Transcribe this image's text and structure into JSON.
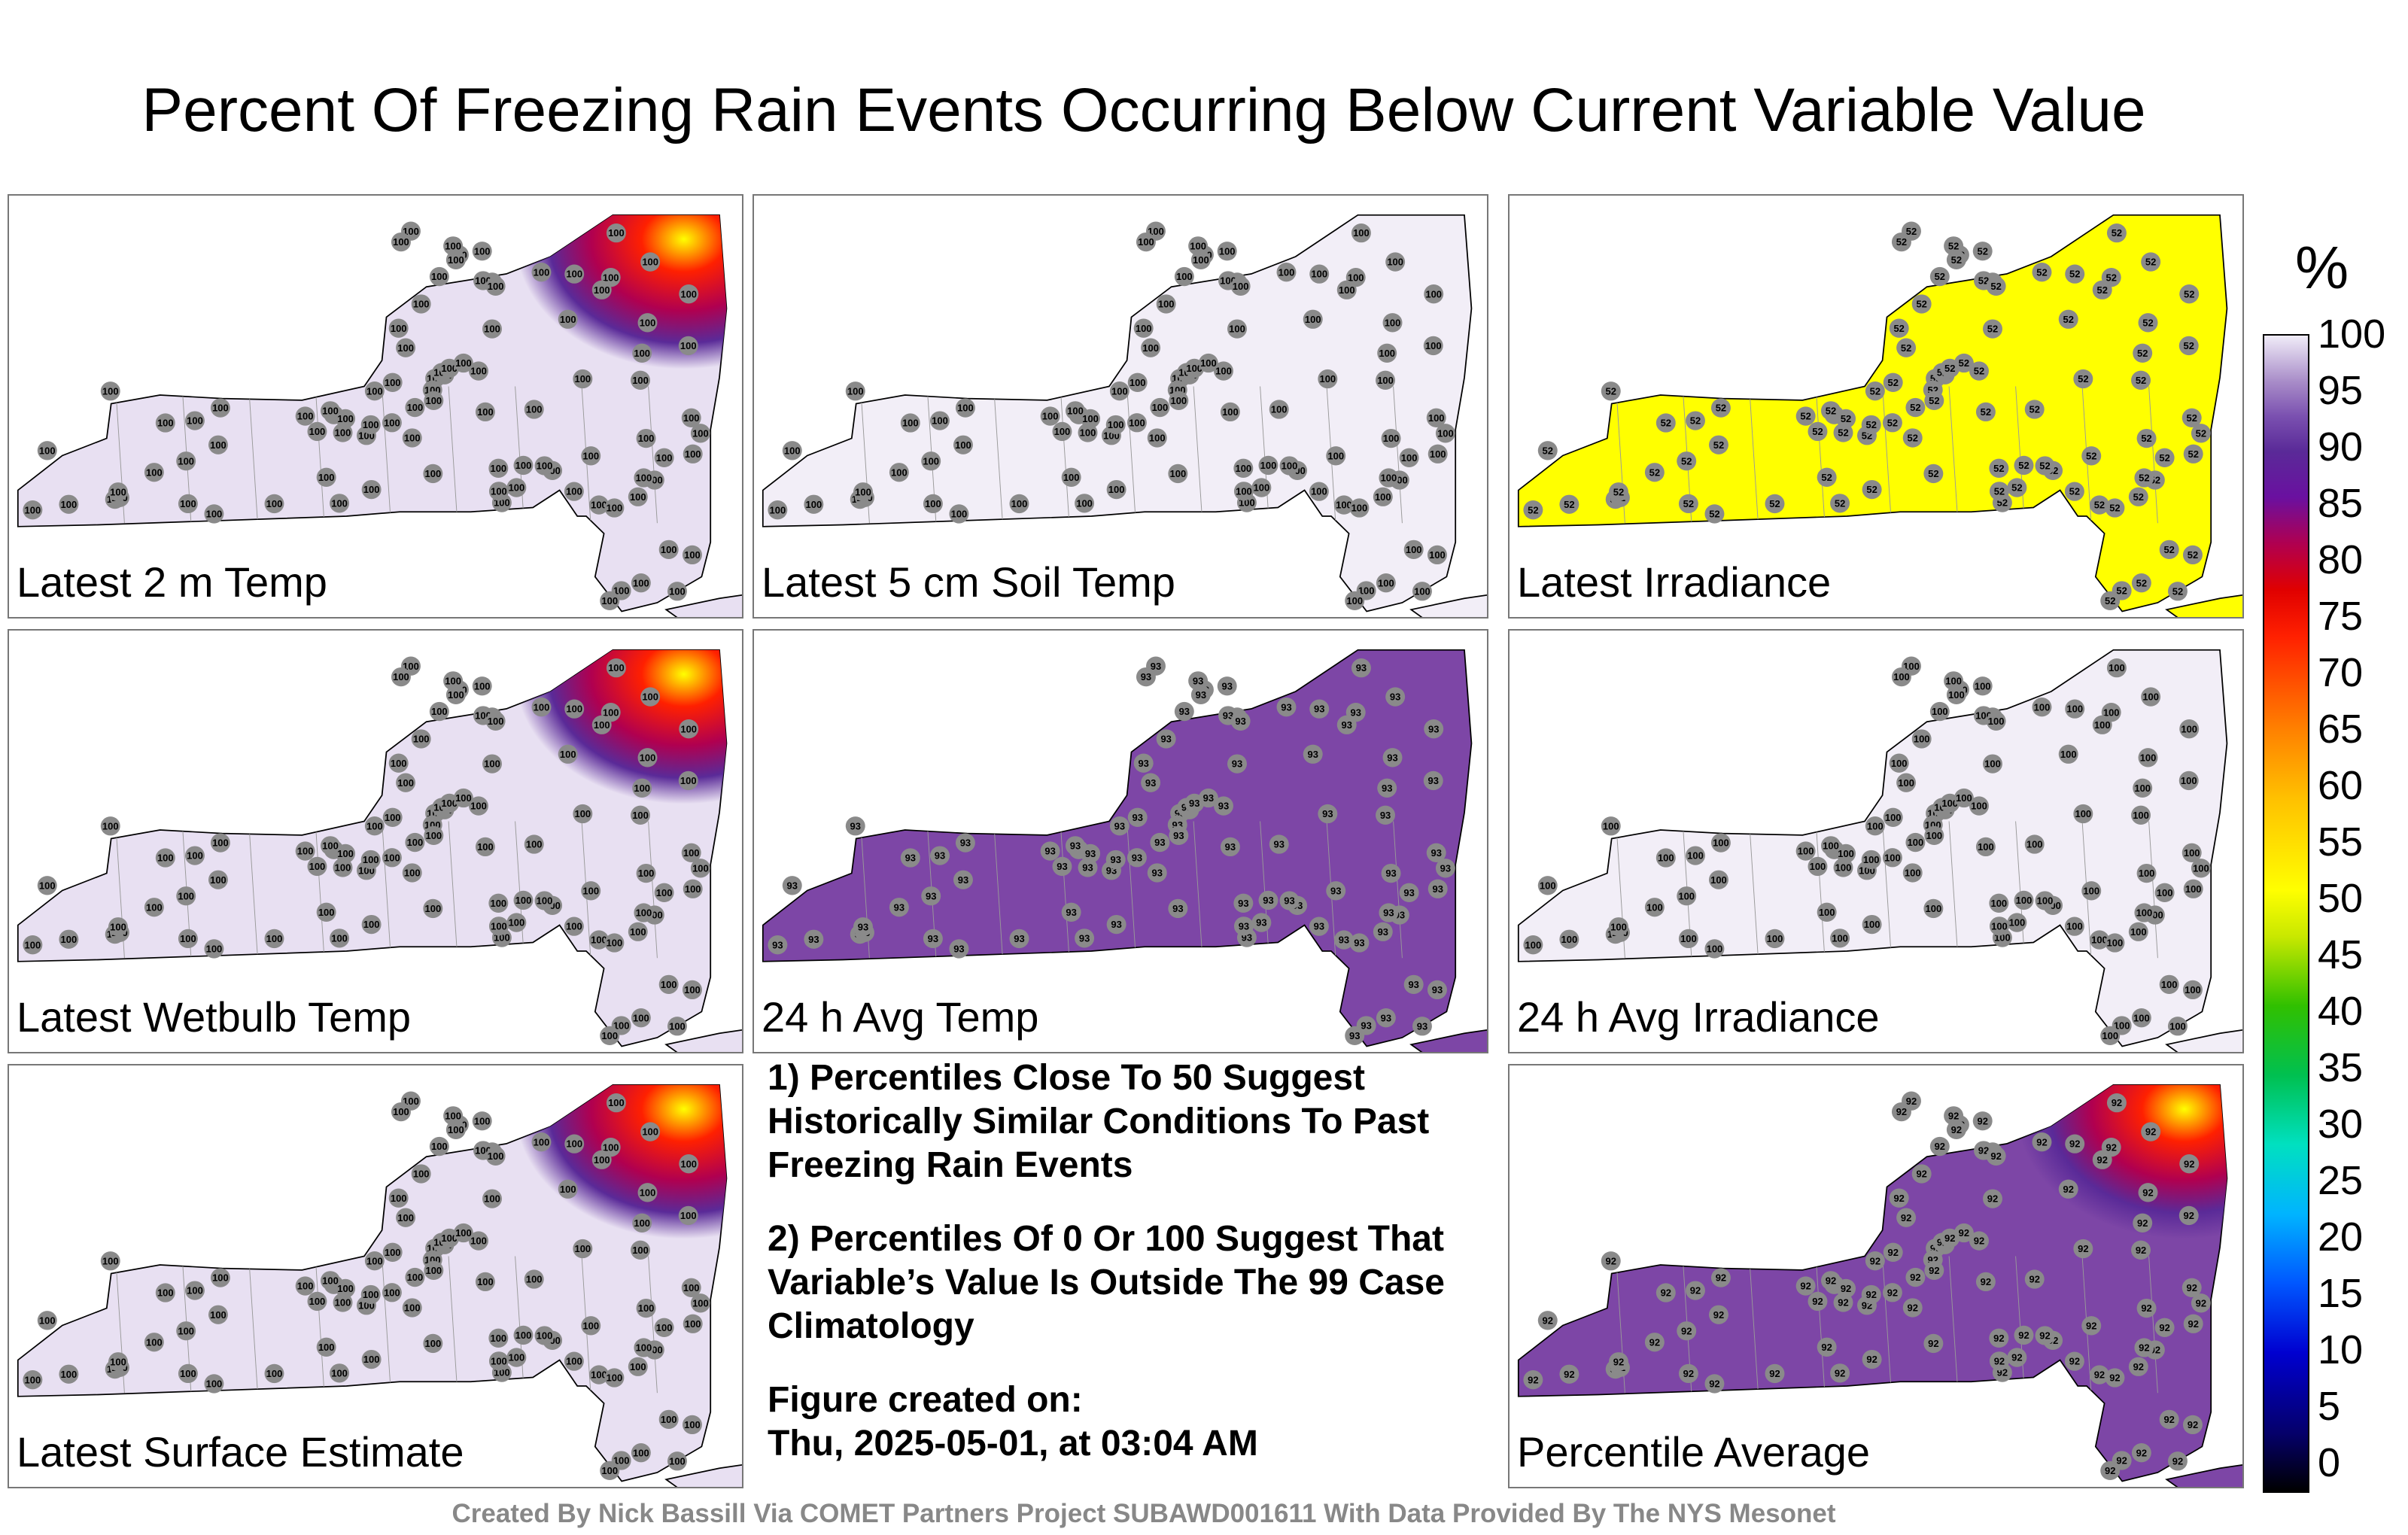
{
  "title": "Percent Of Freezing Rain Events Occurring Below Current Variable Value",
  "panels": [
    {
      "label": "Latest 2 m Temp",
      "base_color": "#e8e0f2",
      "value": "100",
      "hotspots": true
    },
    {
      "label": "Latest 5 cm Soil Temp",
      "base_color": "#f2eef7",
      "value": "100",
      "hotspots": false
    },
    {
      "label": "Latest Irradiance",
      "base_color": "#ffff00",
      "value": "52",
      "hotspots": false
    },
    {
      "label": "Latest Wetbulb Temp",
      "base_color": "#e8e0f2",
      "value": "100",
      "hotspots": true
    },
    {
      "label": "24 h Avg Temp",
      "base_color": "#7d46a6",
      "value": "93",
      "hotspots": false
    },
    {
      "label": "24 h Avg Irradiance",
      "base_color": "#f2eef7",
      "value": "100",
      "hotspots": false
    },
    {
      "label": "Latest Surface Estimate",
      "base_color": "#e8e0f2",
      "value": "100",
      "hotspots": true
    },
    {
      "label": "Percentile Average",
      "base_color": "#7d46a6",
      "value": "92",
      "hotspots": true
    }
  ],
  "notes": {
    "note1": "1) Percentiles Close To 50 Suggest Historically Similar Conditions To Past Freezing Rain Events",
    "note2": "2) Percentiles Of 0 Or 100 Suggest That Variable’s Value Is Outside The 99 Case Climatology",
    "created_label": "Figure created on:",
    "created_date": "Thu, 2025-05-01, at 03:04 AM"
  },
  "colorbar": {
    "unit": "%",
    "ticks": [
      "100",
      "95",
      "90",
      "85",
      "80",
      "75",
      "70",
      "65",
      "60",
      "55",
      "50",
      "45",
      "40",
      "35",
      "30",
      "25",
      "20",
      "15",
      "10",
      "5",
      "0"
    ]
  },
  "credit": "Created By Nick Bassill Via COMET Partners Project SUBAWD001611 With Data Provided By The NYS Mesonet"
}
